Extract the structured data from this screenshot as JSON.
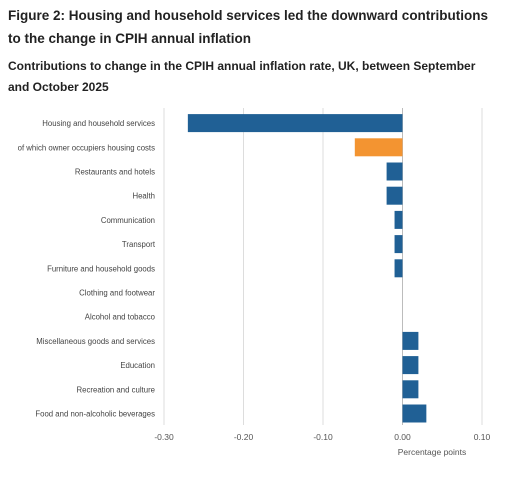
{
  "figure": {
    "title": "Figure 2: Housing and household services led the downward contributions to the change in CPIH annual inflation",
    "subtitle": "Contributions to change in the CPIH annual inflation rate, UK, between September and October 2025"
  },
  "chart_data": {
    "type": "bar",
    "orientation": "horizontal",
    "title": "Figure 2: Housing and household services led the downward contributions to the change in CPIH annual inflation",
    "subtitle": "Contributions to change in the CPIH annual inflation rate, UK, between September and October 2025",
    "xlabel": "Percentage points",
    "ylabel": "",
    "xlim": [
      -0.3,
      0.1
    ],
    "xticks": [
      -0.3,
      -0.2,
      -0.1,
      0.0,
      0.1
    ],
    "xtick_labels": [
      "-0.30",
      "-0.20",
      "-0.10",
      "0.00",
      "0.10"
    ],
    "grid": true,
    "legend": "none",
    "categories": [
      "Housing and household services",
      "of which owner occupiers housing costs",
      "Restaurants and hotels",
      "Health",
      "Communication",
      "Transport",
      "Furniture and household goods",
      "Clothing and footwear",
      "Alcohol and tobacco",
      "Miscellaneous goods and services",
      "Education",
      "Recreation and culture",
      "Food and non-alcoholic beverages"
    ],
    "values": [
      -0.27,
      -0.06,
      -0.02,
      -0.02,
      -0.01,
      -0.01,
      -0.01,
      0.0,
      0.0,
      0.02,
      0.02,
      0.02,
      0.03
    ],
    "bar_colors": [
      "#206095",
      "#f39431",
      "#206095",
      "#206095",
      "#206095",
      "#206095",
      "#206095",
      "#206095",
      "#206095",
      "#206095",
      "#206095",
      "#206095",
      "#206095"
    ]
  }
}
